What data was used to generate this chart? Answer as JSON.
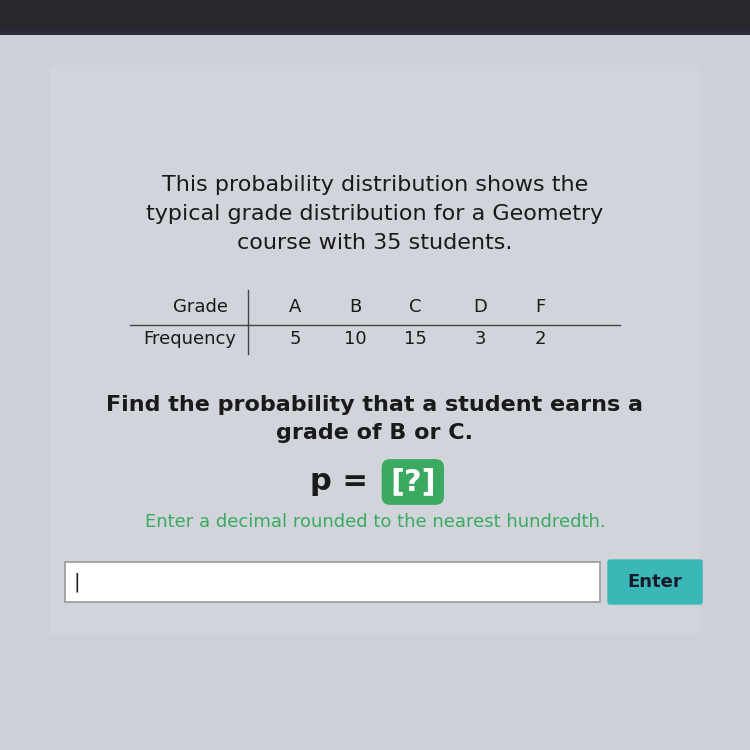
{
  "title_line1": "This probability distribution shows the",
  "title_line2": "typical grade distribution for a Geometry",
  "title_line3": "course with 35 students.",
  "grades": [
    "A",
    "B",
    "C",
    "D",
    "F"
  ],
  "frequencies": [
    5,
    10,
    15,
    3,
    2
  ],
  "row_labels": [
    "Grade",
    "Frequency"
  ],
  "question_line1": "Find the probability that a student earns a",
  "question_line2": "grade of B or C.",
  "equation_prefix": "p = [?]",
  "hint": "Enter a decimal rounded to the nearest hundredth.",
  "bg_top_color": "#3a3a4a",
  "bg_main_color": "#c8ccd4",
  "text_color": "#1a1a1a",
  "green_text_color": "#3aaa60",
  "highlight_color": "#3aaa60",
  "enter_btn_color": "#3ab8b8",
  "enter_btn_text": "#1a1a2a",
  "title_fontsize": 16,
  "question_fontsize": 16,
  "equation_fontsize": 22,
  "hint_fontsize": 13,
  "table_fontsize": 13,
  "table_label_fontsize": 12
}
